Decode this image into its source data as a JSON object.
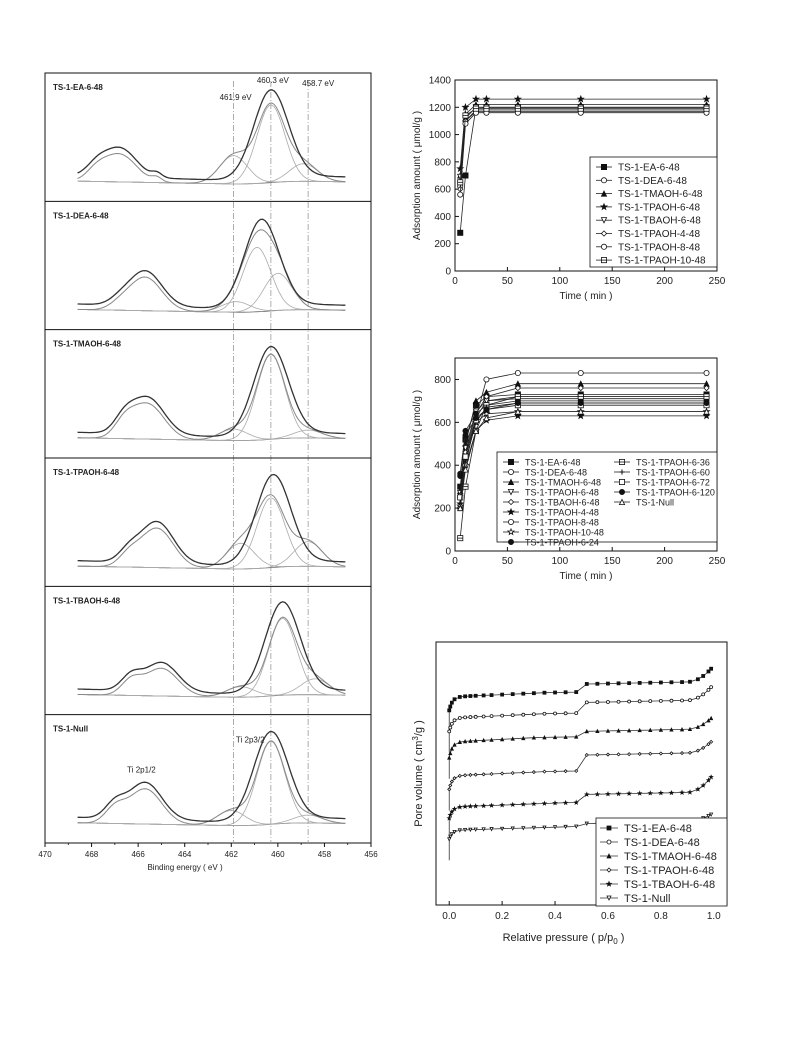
{
  "chart_data": [
    {
      "type": "line",
      "panel": "xps-stack",
      "xlabel": "Binding energy ( eV )",
      "xlim": [
        470,
        456
      ],
      "xticks": [
        470,
        468,
        466,
        464,
        462,
        460,
        458,
        456
      ],
      "reference_lines": [
        461.9,
        460.3,
        458.7
      ],
      "annotations": [
        {
          "text": "460.3 eV",
          "panel": 0,
          "x": 460.3
        },
        {
          "text": "461.9 eV",
          "panel": 0,
          "x": 461.9
        },
        {
          "text": "458.7 eV",
          "panel": 0,
          "x": 458.7
        },
        {
          "text": "Ti 2p1/2",
          "panel": 5,
          "x": 465.7
        },
        {
          "text": "Ti 2p3/2",
          "panel": 5,
          "x": 461.2
        }
      ],
      "panels": [
        {
          "label": "TS-1-EA-6-48",
          "p1": {
            "x": 466.8,
            "h": 0.33
          },
          "shoulder": {
            "x": 467.8,
            "h": 0.1
          },
          "bump": {
            "x": 465.2,
            "h": 0.05
          },
          "main": {
            "x": 460.3,
            "h": 1.0
          },
          "fit": [
            {
              "x": 461.9,
              "h": 0.32
            },
            {
              "x": 460.3,
              "h": 0.88
            },
            {
              "x": 458.9,
              "h": 0.2
            }
          ]
        },
        {
          "label": "TS-1-DEA-6-48",
          "p1": {
            "x": 465.7,
            "h": 0.4
          },
          "shoulder": {
            "x": 466.8,
            "h": 0.05
          },
          "bump": null,
          "main": {
            "x": 460.7,
            "h": 1.0
          },
          "fit": [
            {
              "x": 461.8,
              "h": 0.12
            },
            {
              "x": 460.9,
              "h": 0.73
            },
            {
              "x": 460.0,
              "h": 0.42
            }
          ]
        },
        {
          "label": "TS-1-TMAOH-6-48",
          "p1": {
            "x": 465.6,
            "h": 0.42
          },
          "shoulder": {
            "x": 466.6,
            "h": 0.15
          },
          "bump": null,
          "main": {
            "x": 460.3,
            "h": 1.0
          },
          "fit": [
            {
              "x": 461.9,
              "h": 0.13
            },
            {
              "x": 460.3,
              "h": 0.96
            },
            {
              "x": 458.7,
              "h": 0.09
            }
          ]
        },
        {
          "label": "TS-1-TPAOH-6-48",
          "p1": {
            "x": 465.2,
            "h": 0.47
          },
          "shoulder": {
            "x": 466.4,
            "h": 0.12
          },
          "bump": null,
          "main": {
            "x": 460.2,
            "h": 1.0
          },
          "fit": [
            {
              "x": 461.6,
              "h": 0.29
            },
            {
              "x": 460.3,
              "h": 0.79
            },
            {
              "x": 458.7,
              "h": 0.28
            }
          ]
        },
        {
          "label": "TS-1-TBAOH-6-48",
          "p1": {
            "x": 465.0,
            "h": 0.33
          },
          "shoulder": {
            "x": 466.3,
            "h": 0.16
          },
          "bump": null,
          "main": {
            "x": 459.8,
            "h": 1.0
          },
          "fit": [
            {
              "x": 461.6,
              "h": 0.12
            },
            {
              "x": 459.8,
              "h": 0.87
            },
            {
              "x": 458.4,
              "h": 0.18
            }
          ]
        },
        {
          "label": "TS-1-Null",
          "p1": {
            "x": 465.7,
            "h": 0.42
          },
          "shoulder": {
            "x": 467.0,
            "h": 0.16
          },
          "bump": null,
          "main": {
            "x": 460.3,
            "h": 1.0
          },
          "fit": [
            {
              "x": 462.0,
              "h": 0.17
            },
            {
              "x": 460.3,
              "h": 0.94
            },
            {
              "x": 458.7,
              "h": 0.09
            }
          ]
        }
      ]
    },
    {
      "type": "line",
      "panel": "adsorption-vs-time-a",
      "xlabel": "Time ( min )",
      "ylabel": "Adsorption amount ( μmol/g )",
      "xlim": [
        0,
        250
      ],
      "ylim": [
        0,
        1400
      ],
      "xticks": [
        0,
        50,
        100,
        150,
        200,
        250
      ],
      "yticks": [
        0,
        200,
        400,
        600,
        800,
        1000,
        1200,
        1400
      ],
      "x": [
        5,
        10,
        20,
        30,
        60,
        120,
        240
      ],
      "series": [
        {
          "name": "TS-1-EA-6-48",
          "marker": "square-filled",
          "values": [
            280,
            700,
            1200,
            1200,
            1200,
            1200,
            1200
          ]
        },
        {
          "name": "TS-1-DEA-6-48",
          "marker": "circle-open",
          "values": [
            620,
            1100,
            1180,
            1180,
            1180,
            1180,
            1180
          ]
        },
        {
          "name": "TS-1-TMAOH-6-48",
          "marker": "triangle-filled",
          "values": [
            700,
            1150,
            1220,
            1220,
            1220,
            1220,
            1220
          ]
        },
        {
          "name": "TS-1-TPAOH-6-48",
          "marker": "star",
          "values": [
            750,
            1200,
            1260,
            1260,
            1260,
            1260,
            1260
          ]
        },
        {
          "name": "TS-1-TBAOH-6-48",
          "marker": "triangle-down-open",
          "values": [
            690,
            1120,
            1200,
            1200,
            1200,
            1200,
            1200
          ]
        },
        {
          "name": "TS-1-TPAOH-4-48",
          "marker": "diamond-open",
          "values": [
            600,
            1100,
            1170,
            1170,
            1170,
            1170,
            1170
          ]
        },
        {
          "name": "TS-1-TPAOH-8-48",
          "marker": "hexagon-open",
          "values": [
            560,
            1080,
            1160,
            1160,
            1160,
            1160,
            1160
          ]
        },
        {
          "name": "TS-1-TPAOH-10-48",
          "marker": "square-lined",
          "values": [
            650,
            1140,
            1190,
            1190,
            1190,
            1190,
            1190
          ]
        }
      ]
    },
    {
      "type": "line",
      "panel": "adsorption-vs-time-b",
      "xlabel": "Time ( min )",
      "ylabel": "Adsorption amount ( μmol/g )",
      "xlim": [
        0,
        250
      ],
      "ylim": [
        0,
        900
      ],
      "xticks": [
        0,
        50,
        100,
        150,
        200,
        250
      ],
      "yticks": [
        0,
        200,
        400,
        600,
        800
      ],
      "x": [
        5,
        10,
        20,
        30,
        60,
        120,
        240
      ],
      "series": [
        {
          "name": "TS-1-EA-6-48",
          "marker": "square-filled",
          "values": [
            300,
            520,
            680,
            720,
            730,
            730,
            730
          ]
        },
        {
          "name": "TS-1-DEA-6-48",
          "marker": "circle-open",
          "values": [
            250,
            450,
            620,
            700,
            720,
            720,
            720
          ]
        },
        {
          "name": "TS-1-TMAOH-6-48",
          "marker": "triangle-filled",
          "values": [
            280,
            500,
            700,
            740,
            780,
            780,
            780
          ]
        },
        {
          "name": "TS-1-TPAOH-6-48",
          "marker": "triangle-down-open",
          "values": [
            270,
            480,
            650,
            700,
            710,
            710,
            710
          ]
        },
        {
          "name": "TS-1-TBAOH-6-48",
          "marker": "diamond-open",
          "values": [
            260,
            460,
            640,
            720,
            760,
            760,
            760
          ]
        },
        {
          "name": "TS-1-TPAOH-4-48",
          "marker": "star",
          "values": [
            220,
            400,
            560,
            610,
            630,
            630,
            630
          ]
        },
        {
          "name": "TS-1-TPAOH-8-48",
          "marker": "circle-open",
          "values": [
            200,
            400,
            620,
            800,
            830,
            830,
            830
          ]
        },
        {
          "name": "TS-1-TPAOH-10-48",
          "marker": "star-open",
          "values": [
            210,
            420,
            600,
            640,
            650,
            650,
            650
          ]
        },
        {
          "name": "TS-1-TPAOH-6-24",
          "marker": "circle-filled",
          "values": [
            360,
            560,
            640,
            680,
            700,
            700,
            700
          ]
        },
        {
          "name": "TS-1-TPAOH-6-36",
          "marker": "square-lined",
          "values": [
            60,
            300,
            560,
            680,
            720,
            720,
            720
          ]
        },
        {
          "name": "TS-1-TPAOH-6-60",
          "marker": "plus",
          "values": [
            240,
            420,
            600,
            670,
            690,
            690,
            690
          ]
        },
        {
          "name": "TS-1-TPAOH-6-72",
          "marker": "square-open",
          "values": [
            250,
            440,
            610,
            660,
            680,
            680,
            680
          ]
        },
        {
          "name": "TS-1-TPAOH-6-120",
          "marker": "circle-filled",
          "values": [
            350,
            540,
            620,
            660,
            690,
            690,
            690
          ]
        },
        {
          "name": "TS-1-Null",
          "marker": "triangle-open",
          "values": [
            200,
            380,
            560,
            620,
            650,
            650,
            650
          ]
        }
      ]
    },
    {
      "type": "line",
      "panel": "pore-volume",
      "xlabel": "Relative pressure ( p/p",
      "xlabel_sub": "0",
      "xlabel_end": " )",
      "ylabel": "Pore volume ( cm",
      "ylabel_sup": "3",
      "ylabel_end": "/g )",
      "xlim": [
        -0.05,
        1.05
      ],
      "xticks": [
        0.0,
        0.2,
        0.4,
        0.6,
        0.8,
        1.0
      ],
      "ylim": [
        0,
        1
      ],
      "series": [
        {
          "name": "TS-1-EA-6-48",
          "marker": "square-filled",
          "start": 0.74,
          "plateau": 0.8,
          "step_x": 0.49,
          "step": 0.03,
          "end_rise": 0.06
        },
        {
          "name": "TS-1-DEA-6-48",
          "marker": "circle-open",
          "start": 0.66,
          "plateau": 0.72,
          "step_x": 0.51,
          "step": 0.04,
          "end_rise": 0.06
        },
        {
          "name": "TS-1-TMAOH-6-48",
          "marker": "triangle-filled",
          "start": 0.56,
          "plateau": 0.63,
          "step_x": 0.5,
          "step": 0.02,
          "end_rise": 0.05
        },
        {
          "name": "TS-1-TPAOH-6-48",
          "marker": "diamond-open",
          "start": 0.44,
          "plateau": 0.5,
          "step_x": 0.48,
          "step": 0.06,
          "end_rise": 0.05
        },
        {
          "name": "TS-1-TBAOH-6-48",
          "marker": "star",
          "start": 0.33,
          "plateau": 0.38,
          "step_x": 0.5,
          "step": 0.03,
          "end_rise": 0.07
        },
        {
          "name": "TS-1-Null",
          "marker": "triangle-down-open",
          "start": 0.25,
          "plateau": 0.29,
          "step_x": 0.5,
          "step": 0.01,
          "end_rise": 0.03
        }
      ]
    }
  ]
}
